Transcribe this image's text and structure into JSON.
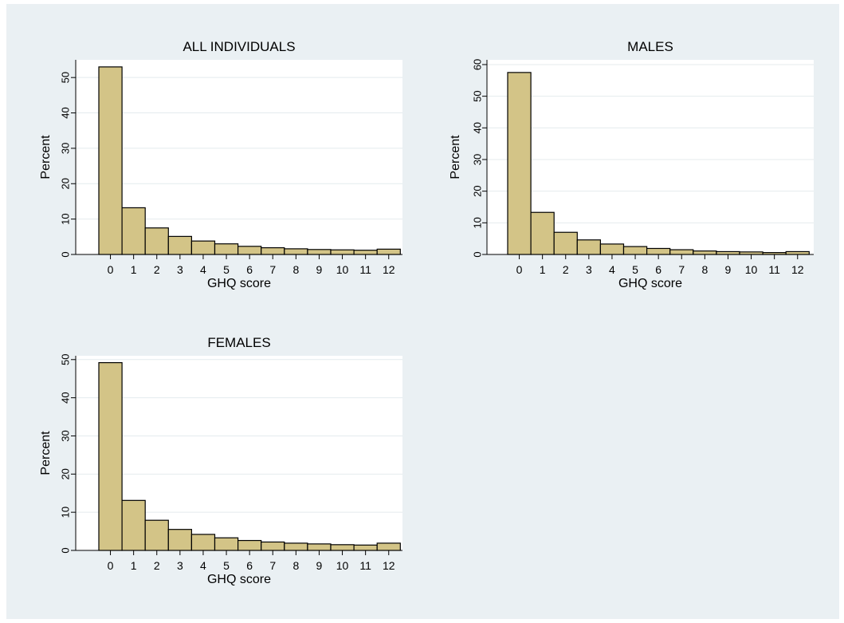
{
  "colors": {
    "background": "#eaf0f3",
    "plot_background": "#ffffff",
    "bar_fill": "#d3c487",
    "bar_stroke": "#000000",
    "grid": "#e4ebee"
  },
  "chart_data": [
    {
      "type": "bar",
      "title": "ALL INDIVIDUALS",
      "xlabel": "GHQ score",
      "ylabel": "Percent",
      "categories": [
        "0",
        "1",
        "2",
        "3",
        "4",
        "5",
        "6",
        "7",
        "8",
        "9",
        "10",
        "11",
        "12"
      ],
      "values": [
        53.0,
        13.2,
        7.5,
        5.1,
        3.8,
        3.0,
        2.3,
        1.9,
        1.6,
        1.4,
        1.3,
        1.2,
        1.5
      ],
      "ylim": [
        0,
        55
      ],
      "yticks": [
        0,
        10,
        20,
        30,
        40,
        50
      ],
      "grid": true
    },
    {
      "type": "bar",
      "title": "MALES",
      "xlabel": "GHQ score",
      "ylabel": "Percent",
      "categories": [
        "0",
        "1",
        "2",
        "3",
        "4",
        "5",
        "6",
        "7",
        "8",
        "9",
        "10",
        "11",
        "12"
      ],
      "values": [
        57.5,
        13.3,
        7.0,
        4.6,
        3.3,
        2.5,
        1.9,
        1.5,
        1.1,
        0.9,
        0.8,
        0.6,
        0.9
      ],
      "ylim": [
        0,
        61.5
      ],
      "yticks": [
        0,
        10,
        20,
        30,
        40,
        50,
        60
      ],
      "grid": true
    },
    {
      "type": "bar",
      "title": "FEMALES",
      "xlabel": "GHQ score",
      "ylabel": "Percent",
      "categories": [
        "0",
        "1",
        "2",
        "3",
        "4",
        "5",
        "6",
        "7",
        "8",
        "9",
        "10",
        "11",
        "12"
      ],
      "values": [
        49.2,
        13.1,
        7.9,
        5.5,
        4.2,
        3.3,
        2.6,
        2.2,
        1.9,
        1.7,
        1.5,
        1.4,
        1.9
      ],
      "ylim": [
        0,
        51
      ],
      "yticks": [
        0,
        10,
        20,
        30,
        40,
        50
      ],
      "grid": true
    }
  ]
}
